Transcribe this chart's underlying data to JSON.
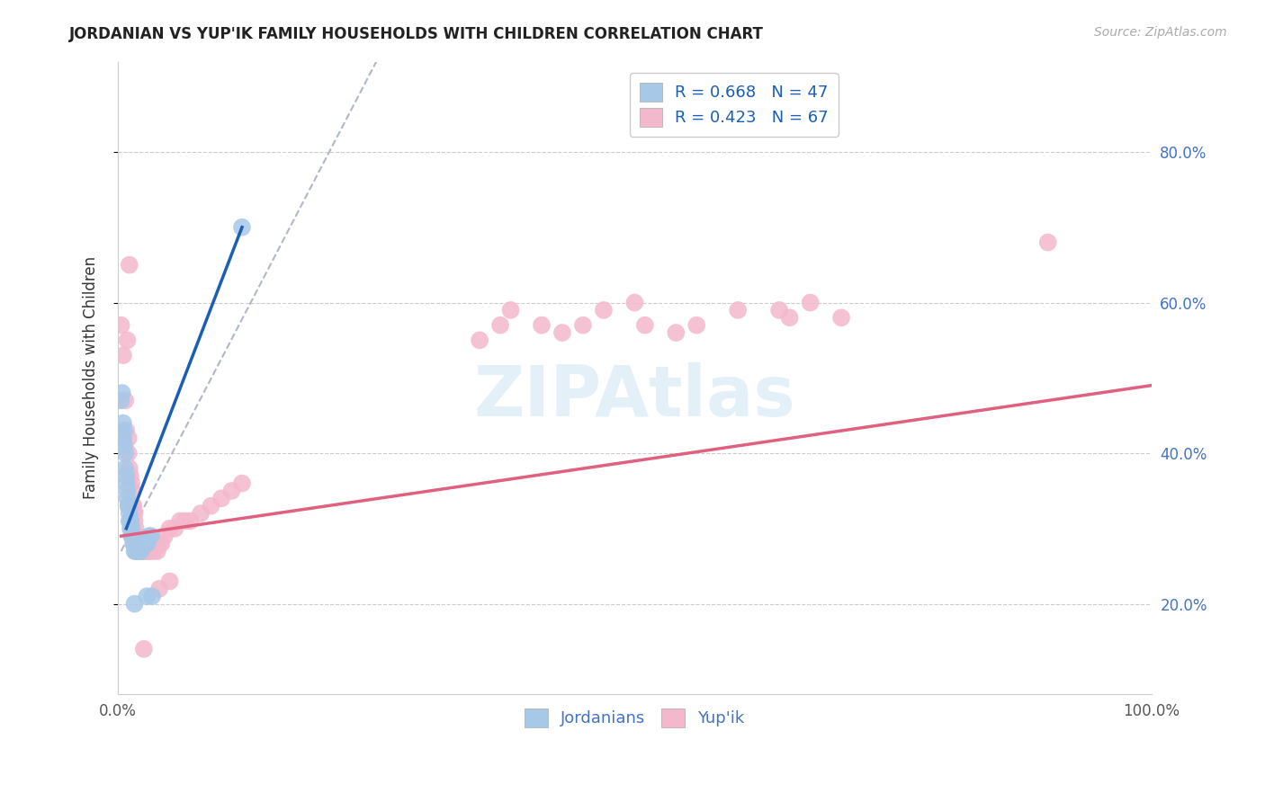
{
  "title": "JORDANIAN VS YUP'IK FAMILY HOUSEHOLDS WITH CHILDREN CORRELATION CHART",
  "source": "Source: ZipAtlas.com",
  "ylabel": "Family Households with Children",
  "xlim": [
    0.0,
    1.0
  ],
  "ylim": [
    0.08,
    0.92
  ],
  "ytick_values": [
    0.2,
    0.4,
    0.6,
    0.8
  ],
  "ytick_labels": [
    "20.0%",
    "40.0%",
    "60.0%",
    "80.0%"
  ],
  "watermark": "ZIPAtlas",
  "blue_color": "#a8c8e8",
  "pink_color": "#f4b8cc",
  "blue_line_color": "#1a5fb4",
  "pink_line_color": "#e06080",
  "grid_color": "#cccccc",
  "blue_scatter": [
    [
      0.003,
      0.47
    ],
    [
      0.004,
      0.43
    ],
    [
      0.005,
      0.44
    ],
    [
      0.005,
      0.42
    ],
    [
      0.006,
      0.43
    ],
    [
      0.006,
      0.41
    ],
    [
      0.007,
      0.4
    ],
    [
      0.007,
      0.38
    ],
    [
      0.008,
      0.37
    ],
    [
      0.008,
      0.36
    ],
    [
      0.009,
      0.35
    ],
    [
      0.009,
      0.34
    ],
    [
      0.01,
      0.33
    ],
    [
      0.01,
      0.33
    ],
    [
      0.011,
      0.32
    ],
    [
      0.011,
      0.31
    ],
    [
      0.012,
      0.31
    ],
    [
      0.012,
      0.3
    ],
    [
      0.013,
      0.3
    ],
    [
      0.013,
      0.29
    ],
    [
      0.014,
      0.29
    ],
    [
      0.014,
      0.29
    ],
    [
      0.015,
      0.28
    ],
    [
      0.015,
      0.28
    ],
    [
      0.016,
      0.28
    ],
    [
      0.016,
      0.27
    ],
    [
      0.017,
      0.27
    ],
    [
      0.018,
      0.27
    ],
    [
      0.019,
      0.27
    ],
    [
      0.02,
      0.27
    ],
    [
      0.02,
      0.28
    ],
    [
      0.021,
      0.27
    ],
    [
      0.022,
      0.27
    ],
    [
      0.022,
      0.27
    ],
    [
      0.023,
      0.28
    ],
    [
      0.024,
      0.28
    ],
    [
      0.025,
      0.28
    ],
    [
      0.026,
      0.28
    ],
    [
      0.027,
      0.28
    ],
    [
      0.028,
      0.28
    ],
    [
      0.03,
      0.29
    ],
    [
      0.032,
      0.29
    ],
    [
      0.016,
      0.2
    ],
    [
      0.028,
      0.21
    ],
    [
      0.004,
      0.48
    ],
    [
      0.033,
      0.21
    ],
    [
      0.12,
      0.7
    ]
  ],
  "pink_scatter": [
    [
      0.003,
      0.57
    ],
    [
      0.005,
      0.53
    ],
    [
      0.007,
      0.47
    ],
    [
      0.008,
      0.43
    ],
    [
      0.009,
      0.55
    ],
    [
      0.01,
      0.42
    ],
    [
      0.01,
      0.4
    ],
    [
      0.011,
      0.65
    ],
    [
      0.011,
      0.38
    ],
    [
      0.012,
      0.37
    ],
    [
      0.013,
      0.36
    ],
    [
      0.014,
      0.35
    ],
    [
      0.014,
      0.33
    ],
    [
      0.015,
      0.33
    ],
    [
      0.016,
      0.32
    ],
    [
      0.016,
      0.31
    ],
    [
      0.017,
      0.3
    ],
    [
      0.017,
      0.29
    ],
    [
      0.018,
      0.29
    ],
    [
      0.018,
      0.28
    ],
    [
      0.019,
      0.28
    ],
    [
      0.019,
      0.27
    ],
    [
      0.02,
      0.27
    ],
    [
      0.021,
      0.27
    ],
    [
      0.022,
      0.27
    ],
    [
      0.023,
      0.27
    ],
    [
      0.024,
      0.27
    ],
    [
      0.025,
      0.27
    ],
    [
      0.026,
      0.27
    ],
    [
      0.027,
      0.27
    ],
    [
      0.028,
      0.27
    ],
    [
      0.03,
      0.27
    ],
    [
      0.032,
      0.27
    ],
    [
      0.035,
      0.27
    ],
    [
      0.038,
      0.27
    ],
    [
      0.04,
      0.28
    ],
    [
      0.042,
      0.28
    ],
    [
      0.045,
      0.29
    ],
    [
      0.05,
      0.3
    ],
    [
      0.055,
      0.3
    ],
    [
      0.06,
      0.31
    ],
    [
      0.065,
      0.31
    ],
    [
      0.07,
      0.31
    ],
    [
      0.08,
      0.32
    ],
    [
      0.09,
      0.33
    ],
    [
      0.1,
      0.34
    ],
    [
      0.11,
      0.35
    ],
    [
      0.12,
      0.36
    ],
    [
      0.025,
      0.14
    ],
    [
      0.04,
      0.22
    ],
    [
      0.05,
      0.23
    ],
    [
      0.35,
      0.55
    ],
    [
      0.37,
      0.57
    ],
    [
      0.38,
      0.59
    ],
    [
      0.41,
      0.57
    ],
    [
      0.43,
      0.56
    ],
    [
      0.45,
      0.57
    ],
    [
      0.47,
      0.59
    ],
    [
      0.5,
      0.6
    ],
    [
      0.51,
      0.57
    ],
    [
      0.54,
      0.56
    ],
    [
      0.56,
      0.57
    ],
    [
      0.6,
      0.59
    ],
    [
      0.64,
      0.59
    ],
    [
      0.65,
      0.58
    ],
    [
      0.67,
      0.6
    ],
    [
      0.7,
      0.58
    ],
    [
      0.9,
      0.68
    ]
  ],
  "blue_trendline_solid": [
    [
      0.008,
      0.3
    ],
    [
      0.12,
      0.7
    ]
  ],
  "blue_trendline_dashed": [
    [
      0.003,
      0.27
    ],
    [
      0.25,
      0.92
    ]
  ],
  "pink_trendline": [
    [
      0.003,
      0.29
    ],
    [
      1.0,
      0.49
    ]
  ]
}
